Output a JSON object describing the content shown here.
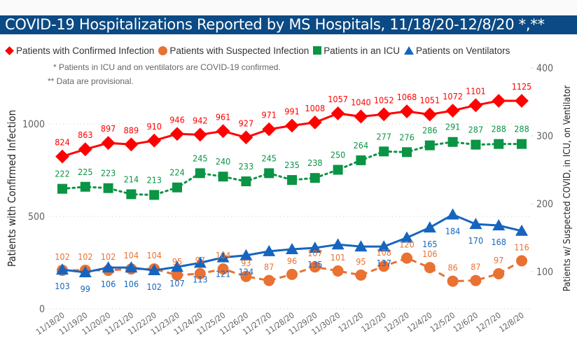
{
  "title": "COVID-19 Hospitalizations Reported by MS Hospitals, 11/18/20-12/8/20 *,**",
  "notes": [
    "* Patients in ICU and on ventilators are COVID-19 confirmed.",
    "** Data are provisional."
  ],
  "chart_data": {
    "type": "line",
    "title": "COVID-19 Hospitalizations Reported by MS Hospitals, 11/18/20-12/8/20 *,**",
    "xlabel": "",
    "ylabel": "Patients with Confirmed Infection",
    "y2label": "Patients w/ Suspected COVID, in ICU, on Ventilator",
    "ylim": [
      0,
      1200
    ],
    "y_ticks": [
      0,
      500,
      1000
    ],
    "y2lim": [
      0,
      420
    ],
    "y2_ticks": [
      100,
      200,
      300,
      400
    ],
    "grid": true,
    "legend_position": "top-left",
    "categories": [
      "11/18/20",
      "11/19/20",
      "11/20/20",
      "11/21/20",
      "11/22/20",
      "11/23/20",
      "11/24/20",
      "11/25/20",
      "11/26/20",
      "11/27/20",
      "11/28/20",
      "11/29/20",
      "11/30/20",
      "12/1/20",
      "12/2/20",
      "12/3/20",
      "12/4/20",
      "12/5/20",
      "12/6/20",
      "12/7/20",
      "12/8/20"
    ],
    "series": [
      {
        "name": "Patients with Confirmed Infection",
        "axis": "left",
        "marker": "diamond",
        "line": "solid",
        "color": "#ff0000",
        "values": [
          824,
          863,
          897,
          889,
          910,
          946,
          942,
          961,
          927,
          971,
          991,
          1008,
          1057,
          1040,
          1052,
          1068,
          1051,
          1072,
          1101,
          1125,
          1125
        ],
        "labels_shown": [
          true,
          true,
          true,
          true,
          true,
          true,
          true,
          true,
          true,
          true,
          true,
          true,
          true,
          true,
          true,
          true,
          true,
          true,
          true,
          false,
          true
        ]
      },
      {
        "name": "Patients with Suspected Infection",
        "axis": "right",
        "marker": "circle",
        "line": "dashed",
        "color": "#e97132",
        "values": [
          102,
          102,
          102,
          104,
          104,
          95,
          97,
          104,
          93,
          87,
          96,
          107,
          101,
          95,
          108,
          120,
          106,
          86,
          87,
          97,
          116
        ],
        "labels_shown": [
          true,
          true,
          true,
          true,
          true,
          true,
          true,
          true,
          true,
          true,
          true,
          true,
          true,
          true,
          true,
          true,
          true,
          true,
          true,
          true,
          true
        ]
      },
      {
        "name": "Patients in an ICU",
        "axis": "right",
        "marker": "square",
        "line": "dotted",
        "color": "#0a9444",
        "values": [
          222,
          225,
          223,
          214,
          213,
          224,
          245,
          240,
          233,
          245,
          235,
          238,
          250,
          264,
          277,
          276,
          286,
          291,
          287,
          288,
          288
        ],
        "labels_shown": [
          true,
          true,
          true,
          true,
          true,
          true,
          true,
          true,
          true,
          true,
          true,
          true,
          true,
          true,
          true,
          true,
          true,
          true,
          true,
          true,
          true
        ]
      },
      {
        "name": "Patients on Ventilators",
        "axis": "right",
        "marker": "triangle",
        "line": "solid",
        "color": "#1565c0",
        "values": [
          103,
          99,
          106,
          106,
          102,
          107,
          113,
          121,
          124,
          130,
          133,
          135,
          140,
          137,
          137,
          150,
          165,
          184,
          170,
          168,
          160
        ],
        "labels_shown": [
          true,
          true,
          true,
          true,
          true,
          true,
          true,
          true,
          true,
          false,
          false,
          true,
          false,
          false,
          true,
          false,
          true,
          true,
          true,
          true,
          false
        ]
      }
    ]
  }
}
